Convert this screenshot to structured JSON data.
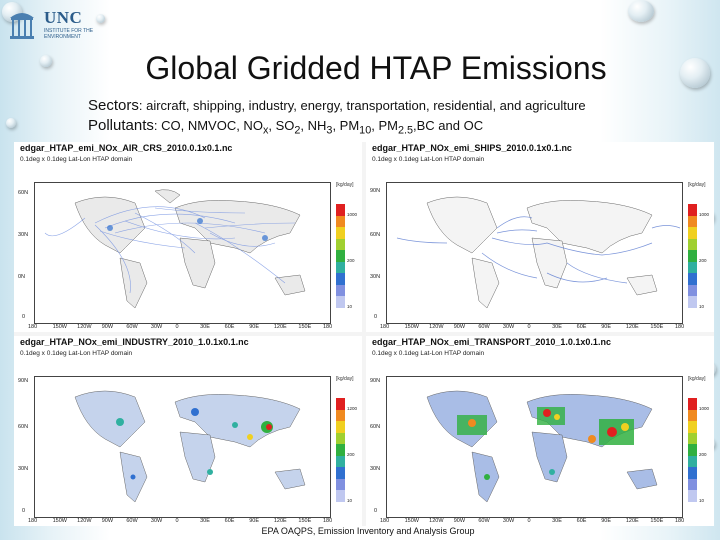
{
  "logo": {
    "name": "UNC",
    "subtitle": "INSTITUTE FOR THE ENVIRONMENT"
  },
  "slide": {
    "title": "Global Gridded HTAP Emissions",
    "sectors_label": "Sectors",
    "sectors_text": ": aircraft, shipping, industry, energy, transportation, residential, and agriculture",
    "pollutants_label": "Pollutants",
    "pollutants_text": ": CO, NMVOC, NO",
    "pollutants_x": "x",
    "pollutants_so": ", SO",
    "pollutants_2": "2",
    "pollutants_nh": ", NH",
    "pollutants_3": "3",
    "pollutants_pm": ", PM",
    "pollutants_10": "10",
    "pollutants_pm2": ", PM",
    "pollutants_25": "2.5",
    "pollutants_end": ",BC and OC"
  },
  "panels": {
    "air": {
      "title": "edgar_HTAP_emi_NOx_AIR_CRS_2010.0.1x0.1.nc",
      "subtitle": "0.1deg x 0.1deg Lat-Lon HTAP domain",
      "unit": "[kg/day]",
      "y_ticks": [
        "60N",
        "30N",
        "0N",
        "0"
      ],
      "x_ticks": [
        "180",
        "150W",
        "120W",
        "90W",
        "60W",
        "30W",
        "0",
        "30E",
        "60E",
        "90E",
        "120E",
        "150E",
        "180"
      ],
      "color_labels": [
        "1000",
        "800",
        "600",
        "400",
        "200",
        "100",
        "50",
        "25",
        "10"
      ]
    },
    "ships": {
      "title": "edgar_HTAP_NOx_emi_SHIPS_2010.0.1x0.1.nc",
      "subtitle": "0.1deg x 0.1deg Lat-Lon HTAP domain",
      "unit": "[kg/day]",
      "y_ticks": [
        "90N",
        "60N",
        "30N",
        "0"
      ],
      "x_ticks": [
        "180",
        "150W",
        "120W",
        "90W",
        "60W",
        "30W",
        "0",
        "30E",
        "60E",
        "90E",
        "120E",
        "150E",
        "180"
      ],
      "color_labels": [
        "1000",
        "800",
        "500",
        "300",
        "200",
        "100",
        "50",
        "25",
        "10"
      ]
    },
    "industry": {
      "title": "edgar_HTAP_NOx_emi_INDUSTRY_2010_1.0.1x0.1.nc",
      "subtitle": "0.1deg x 0.1deg Lat-Lon HTAP domain",
      "unit": "[kg/day]",
      "y_ticks": [
        "90N",
        "60N",
        "30N",
        "0"
      ],
      "x_ticks": [
        "180",
        "150W",
        "120W",
        "90W",
        "60W",
        "30W",
        "0",
        "30E",
        "60E",
        "90E",
        "120E",
        "150E",
        "180"
      ],
      "color_labels": [
        "1200",
        "800",
        "500",
        "300",
        "200",
        "100",
        "50",
        "25",
        "10"
      ]
    },
    "transport": {
      "title": "edgar_HTAP_NOx_emi_TRANSPORT_2010_1.0.1x0.1.nc",
      "subtitle": "0.1deg x 0.1deg Lat-Lon HTAP domain",
      "unit": "[kg/day]",
      "y_ticks": [
        "90N",
        "60N",
        "30N",
        "0"
      ],
      "x_ticks": [
        "180",
        "150W",
        "120W",
        "90W",
        "60W",
        "30W",
        "0",
        "30E",
        "60E",
        "90E",
        "120E",
        "150E",
        "180"
      ],
      "color_labels": [
        "1000",
        "800",
        "500",
        "300",
        "200",
        "100",
        "50",
        "25",
        "10"
      ]
    }
  },
  "colors": {
    "scale": [
      "#e02020",
      "#f08a20",
      "#f0d020",
      "#a0d030",
      "#30b040",
      "#30b0a0",
      "#3070d0",
      "#8090e0",
      "#c0c8f0"
    ],
    "land": "#eaeaea",
    "coast": "#666666"
  },
  "caption": "EPA OAQPS, Emission Inventory and Analysis Group"
}
